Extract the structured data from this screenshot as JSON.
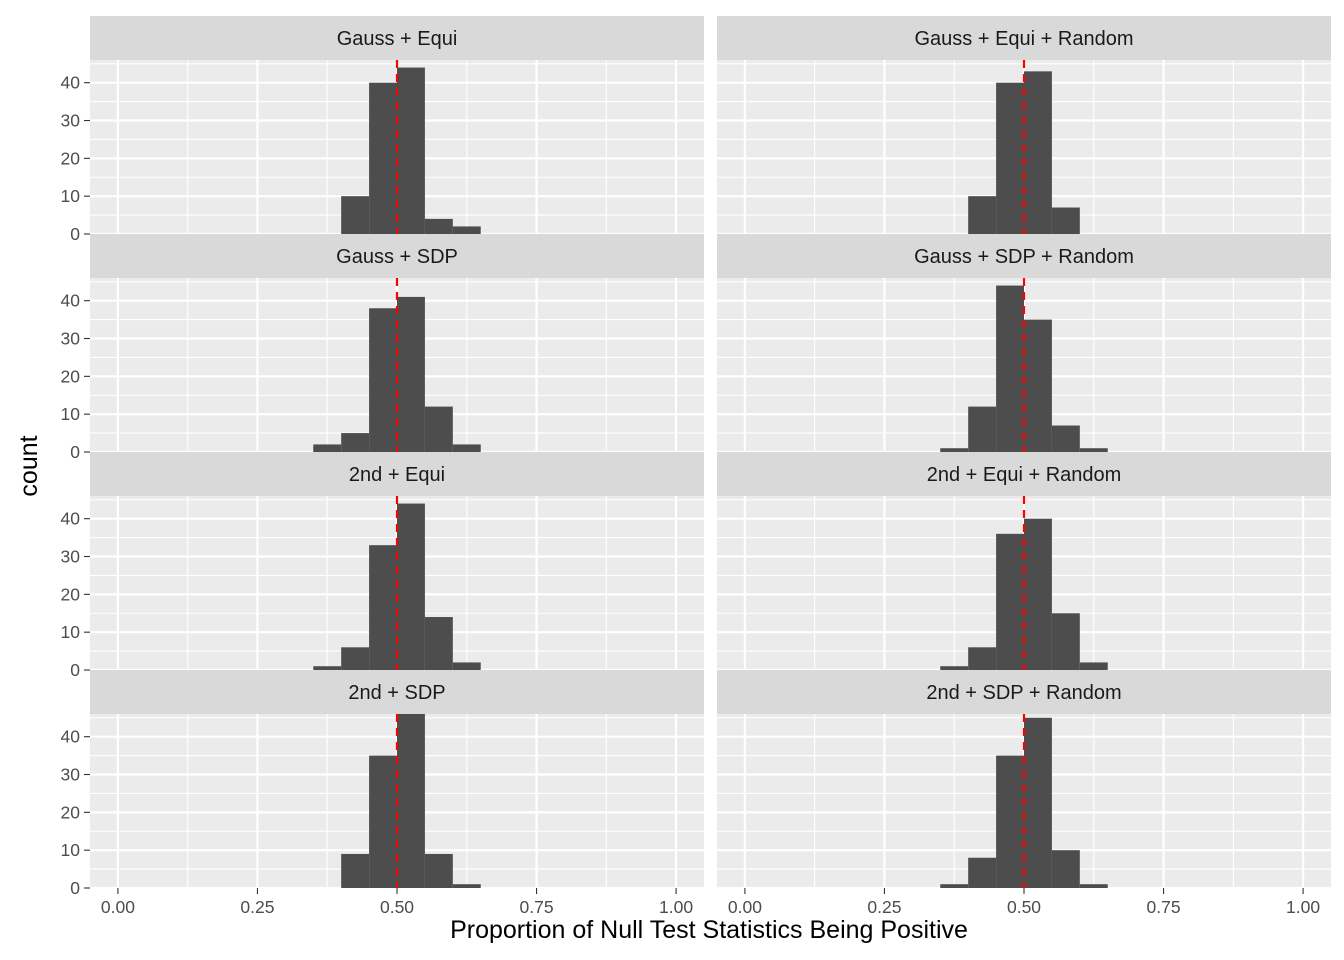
{
  "chart_data": {
    "type": "bar",
    "subtype": "histogram facet grid",
    "xlabel": "Proportion of Null Test Statistics Being Positive",
    "ylabel": "count",
    "xlim": [
      -0.05,
      1.05
    ],
    "ylim": [
      0,
      46
    ],
    "x_ticks": [
      "0.00",
      "0.25",
      "0.50",
      "0.75",
      "1.00"
    ],
    "x_tick_values": [
      0,
      0.25,
      0.5,
      0.75,
      1.0
    ],
    "y_ticks": [
      "0",
      "10",
      "20",
      "30",
      "40"
    ],
    "y_tick_values": [
      0,
      10,
      20,
      30,
      40
    ],
    "bin_width": 0.05,
    "reference_line": {
      "x": 0.5,
      "style": "dashed",
      "color": "#ff0000"
    },
    "grid": true,
    "colors": {
      "bar": "#4d4d4d",
      "panel_bg": "#ebebeb",
      "strip_bg": "#d9d9d9",
      "gridline": "#ffffff"
    },
    "panels": [
      {
        "title": "Gauss + Equi",
        "bins": [
          {
            "x": 0.425,
            "count": 10
          },
          {
            "x": 0.475,
            "count": 40
          },
          {
            "x": 0.525,
            "count": 44
          },
          {
            "x": 0.575,
            "count": 4
          },
          {
            "x": 0.625,
            "count": 2
          }
        ]
      },
      {
        "title": "Gauss + Equi + Random",
        "bins": [
          {
            "x": 0.425,
            "count": 10
          },
          {
            "x": 0.475,
            "count": 40
          },
          {
            "x": 0.525,
            "count": 43
          },
          {
            "x": 0.575,
            "count": 7
          }
        ]
      },
      {
        "title": "Gauss + SDP",
        "bins": [
          {
            "x": 0.375,
            "count": 2
          },
          {
            "x": 0.425,
            "count": 5
          },
          {
            "x": 0.475,
            "count": 38
          },
          {
            "x": 0.525,
            "count": 41
          },
          {
            "x": 0.575,
            "count": 12
          },
          {
            "x": 0.625,
            "count": 2
          }
        ]
      },
      {
        "title": "Gauss + SDP + Random",
        "bins": [
          {
            "x": 0.375,
            "count": 1
          },
          {
            "x": 0.425,
            "count": 12
          },
          {
            "x": 0.475,
            "count": 44
          },
          {
            "x": 0.525,
            "count": 35
          },
          {
            "x": 0.575,
            "count": 7
          },
          {
            "x": 0.625,
            "count": 1
          }
        ]
      },
      {
        "title": "2nd + Equi",
        "bins": [
          {
            "x": 0.375,
            "count": 1
          },
          {
            "x": 0.425,
            "count": 6
          },
          {
            "x": 0.475,
            "count": 33
          },
          {
            "x": 0.525,
            "count": 44
          },
          {
            "x": 0.575,
            "count": 14
          },
          {
            "x": 0.625,
            "count": 2
          }
        ]
      },
      {
        "title": "2nd + Equi + Random",
        "bins": [
          {
            "x": 0.375,
            "count": 1
          },
          {
            "x": 0.425,
            "count": 6
          },
          {
            "x": 0.475,
            "count": 36
          },
          {
            "x": 0.525,
            "count": 40
          },
          {
            "x": 0.575,
            "count": 15
          },
          {
            "x": 0.625,
            "count": 2
          }
        ]
      },
      {
        "title": "2nd + SDP",
        "bins": [
          {
            "x": 0.425,
            "count": 9
          },
          {
            "x": 0.475,
            "count": 35
          },
          {
            "x": 0.525,
            "count": 46
          },
          {
            "x": 0.575,
            "count": 9
          },
          {
            "x": 0.625,
            "count": 1
          }
        ]
      },
      {
        "title": "2nd + SDP + Random",
        "bins": [
          {
            "x": 0.375,
            "count": 1
          },
          {
            "x": 0.425,
            "count": 8
          },
          {
            "x": 0.475,
            "count": 35
          },
          {
            "x": 0.525,
            "count": 45
          },
          {
            "x": 0.575,
            "count": 10
          },
          {
            "x": 0.625,
            "count": 1
          }
        ]
      }
    ]
  }
}
